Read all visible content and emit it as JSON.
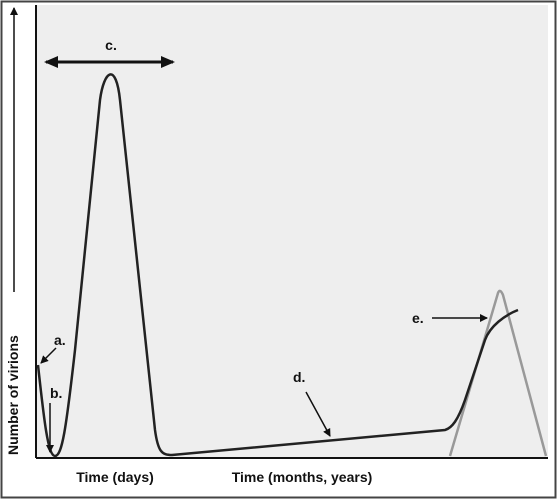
{
  "axes": {
    "y_label": "Number of virions",
    "x_label_days": "Time (days)",
    "x_label_months": "Time (months, years)"
  },
  "annotations": [
    "a.",
    "b.",
    "c.",
    "d.",
    "e."
  ]
}
